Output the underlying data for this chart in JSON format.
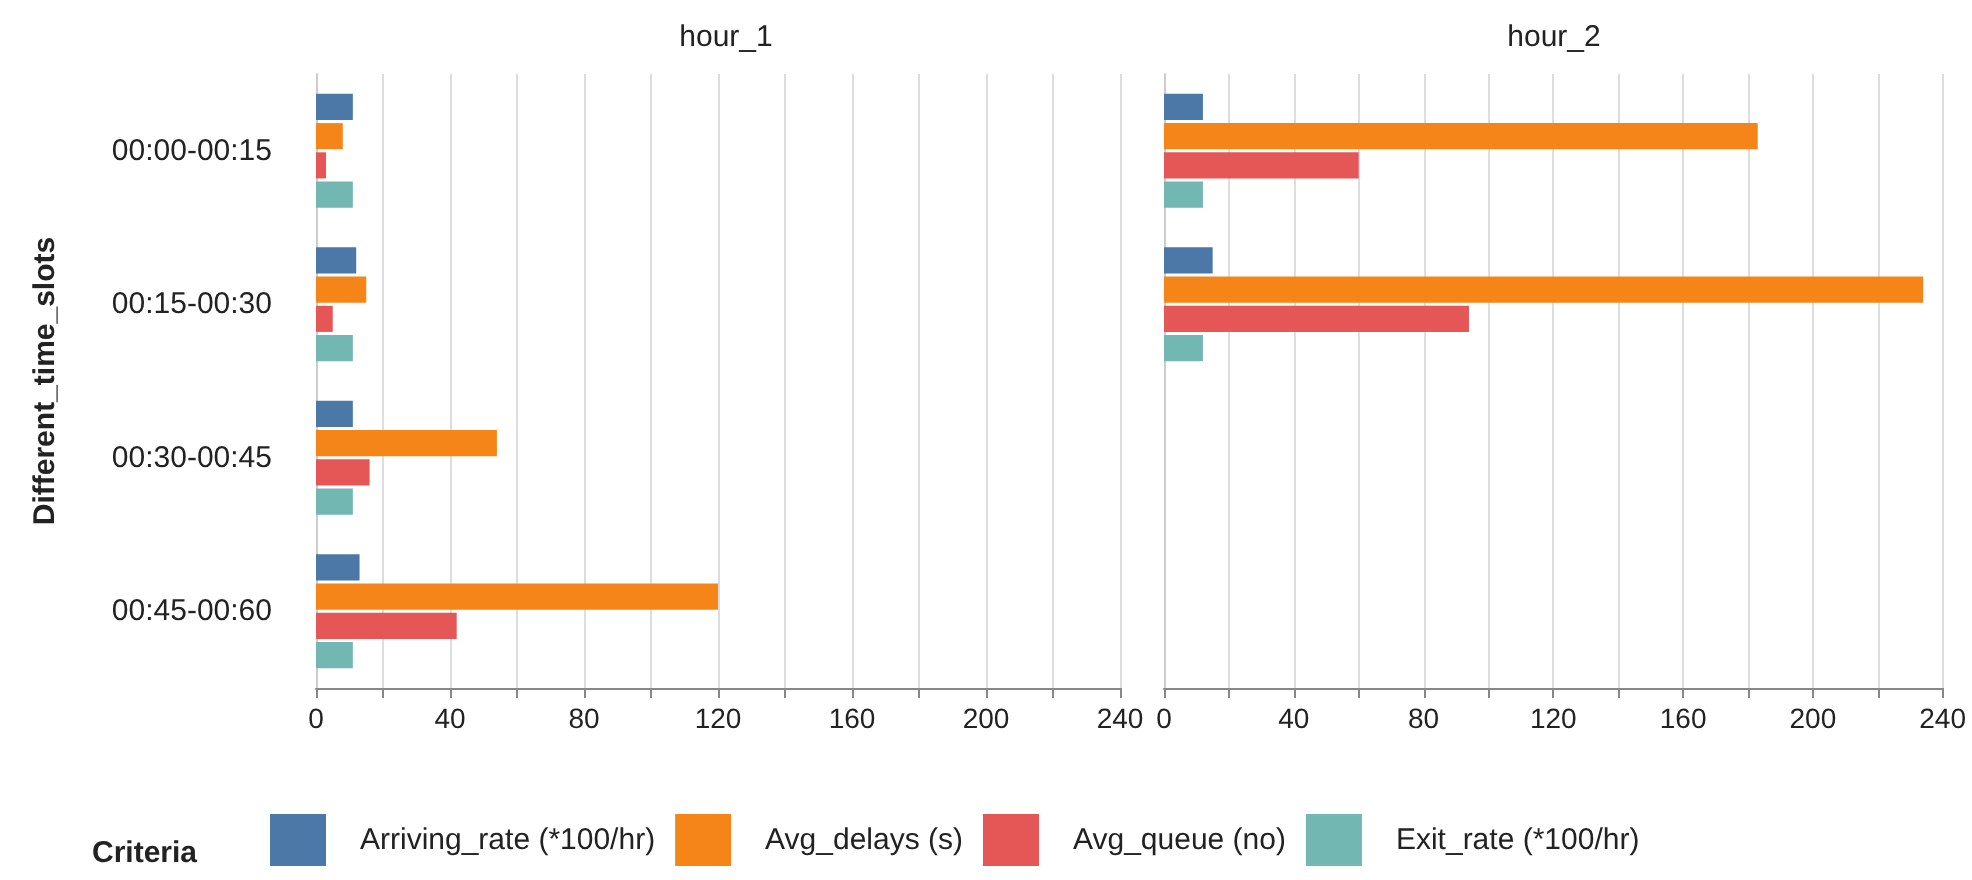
{
  "chart_data": [
    {
      "type": "bar",
      "orientation": "horizontal",
      "title": "hour_1",
      "ylabel": "Different_time_slots",
      "legend_title": "Criteria",
      "legend": "bottom",
      "grid": "x",
      "categories": [
        "00:00-00:15",
        "00:15-00:30",
        "00:30-00:45",
        "00:45-00:60"
      ],
      "series": [
        {
          "name": "Arriving_rate (*100/hr)",
          "color": "#4c78a8",
          "values": [
            11,
            12,
            11,
            13
          ]
        },
        {
          "name": "Avg_delays (s)",
          "color": "#f58518",
          "values": [
            8,
            15,
            54,
            120
          ]
        },
        {
          "name": "Avg_queue (no)",
          "color": "#e45756",
          "values": [
            3,
            5,
            16,
            42
          ]
        },
        {
          "name": "Exit_rate (*100/hr)",
          "color": "#72b7b2",
          "values": [
            11,
            11,
            11,
            11
          ]
        }
      ],
      "xlim": [
        0,
        240
      ],
      "xticks": [
        0,
        {
          "value": 20,
          "label": null
        },
        40,
        {
          "value": 60,
          "label": null
        },
        80,
        {
          "value": 100,
          "label": null
        },
        120,
        {
          "value": 140,
          "label": null
        },
        160,
        {
          "value": 180,
          "label": null
        },
        200,
        {
          "value": 220,
          "label": null
        },
        240
      ]
    },
    {
      "type": "bar",
      "orientation": "horizontal",
      "title": "hour_2",
      "grid": "x",
      "tick_labels": "x",
      "categories": [
        null,
        null,
        null,
        null
      ],
      "series": [
        {
          "color": "#4c78a8",
          "values": [
            12,
            15,
            null,
            null
          ]
        },
        {
          "color": "#f58518",
          "values": [
            183,
            234,
            null,
            null
          ]
        },
        {
          "color": "#e45756",
          "values": [
            60,
            94,
            null,
            null
          ]
        },
        {
          "color": "#72b7b2",
          "values": [
            12,
            12,
            null,
            null
          ]
        }
      ],
      "xlim": [
        0,
        240
      ],
      "xticks": [
        0,
        {
          "value": 20,
          "label": null
        },
        40,
        {
          "value": 60,
          "label": null
        },
        80,
        {
          "value": 100,
          "label": null
        },
        120,
        {
          "value": 140,
          "label": null
        },
        160,
        {
          "value": 180,
          "label": null
        },
        200,
        {
          "value": 220,
          "label": null
        },
        240
      ]
    }
  ]
}
